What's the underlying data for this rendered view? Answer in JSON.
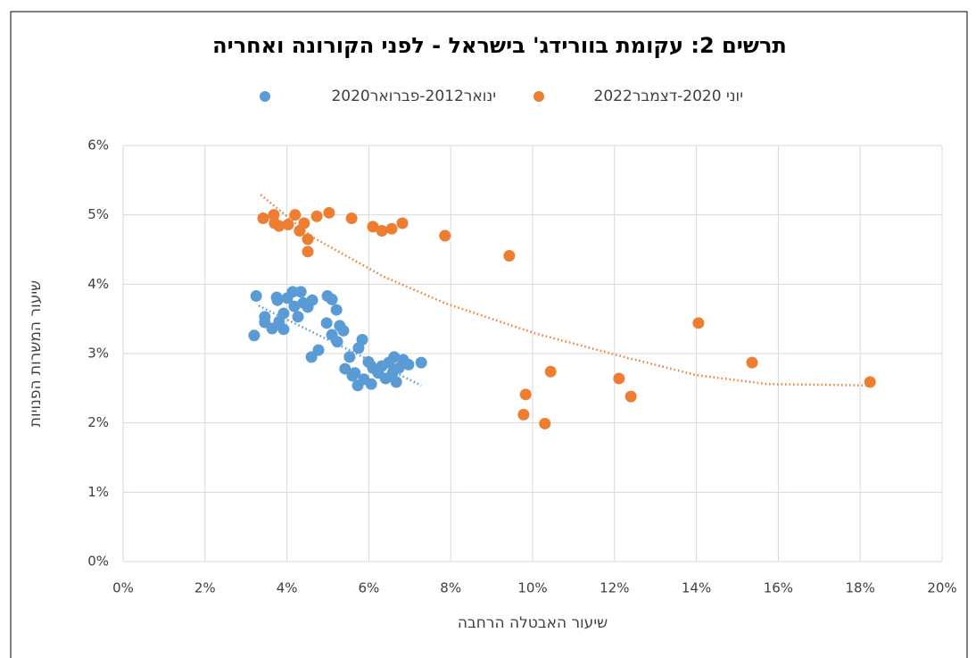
{
  "chart_data": {
    "type": "scatter",
    "title": "תרשים 2: עקומת בוורידג' בישראל - לפני הקורונה ואחריה",
    "x_label": "שיעור האבטלה הרחבה",
    "y_label": "שיעור המשרות הפנויות",
    "xlim": [
      0,
      20
    ],
    "ylim": [
      0,
      6
    ],
    "xticks": [
      {
        "value": 0,
        "label": "0%"
      },
      {
        "value": 2,
        "label": "2%"
      },
      {
        "value": 4,
        "label": "4%"
      },
      {
        "value": 6,
        "label": "6%"
      },
      {
        "value": 8,
        "label": "8%"
      },
      {
        "value": 10,
        "label": "10%"
      },
      {
        "value": 12,
        "label": "12%"
      },
      {
        "value": 14,
        "label": "14%"
      },
      {
        "value": 16,
        "label": "16%"
      },
      {
        "value": 18,
        "label": "18%"
      },
      {
        "value": 20,
        "label": "20%"
      }
    ],
    "yticks": [
      {
        "value": 0,
        "label": "0%"
      },
      {
        "value": 1,
        "label": "1%"
      },
      {
        "value": 2,
        "label": "2%"
      },
      {
        "value": 3,
        "label": "3%"
      },
      {
        "value": 4,
        "label": "4%"
      },
      {
        "value": 5,
        "label": "5%"
      },
      {
        "value": 6,
        "label": "6%"
      }
    ],
    "grid": true,
    "series": [
      {
        "name": "ינואר2012-פברואר2020",
        "color": "#5b9bd5",
        "x": [
          3.25,
          3.2,
          3.46,
          3.46,
          3.64,
          3.75,
          3.81,
          3.92,
          4.01,
          4.14,
          4.18,
          4.27,
          4.34,
          4.4,
          4.51,
          4.62,
          4.6,
          4.77,
          4.99,
          5.1,
          5.21,
          4.97,
          5.1,
          5.23,
          5.29,
          5.38,
          5.42,
          5.53,
          5.66,
          5.75,
          5.84,
          5.73,
          5.88,
          5.99,
          6.1,
          6.23,
          6.32,
          6.41,
          6.49,
          6.58,
          6.62,
          6.73,
          6.84,
          6.97,
          7.28,
          6.67,
          6.06,
          5.6,
          3.77,
          3.92
        ],
        "values": [
          3.83,
          3.26,
          3.53,
          3.45,
          3.36,
          3.81,
          3.46,
          3.58,
          3.8,
          3.89,
          3.68,
          3.53,
          3.89,
          3.73,
          3.67,
          3.77,
          2.95,
          3.05,
          3.83,
          3.78,
          3.63,
          3.44,
          3.27,
          3.17,
          3.4,
          3.33,
          2.78,
          2.95,
          2.72,
          3.08,
          3.2,
          2.54,
          2.63,
          2.88,
          2.79,
          2.72,
          2.82,
          2.64,
          2.87,
          2.72,
          2.95,
          2.79,
          2.91,
          2.84,
          2.87,
          2.59,
          2.56,
          2.68,
          3.77,
          3.35
        ],
        "trendline": {
          "x": [
            3.31,
            7.28
          ],
          "values": [
            3.69,
            2.54
          ]
        }
      },
      {
        "name": "יוני 2020-דצמבר2022",
        "color": "#ed7d31",
        "x": [
          3.42,
          3.68,
          3.7,
          3.81,
          4.03,
          4.2,
          4.31,
          4.42,
          4.51,
          4.51,
          4.73,
          5.03,
          5.58,
          6.1,
          6.32,
          6.56,
          6.82,
          7.86,
          9.43,
          9.83,
          9.78,
          10.3,
          10.44,
          12.11,
          12.4,
          14.05,
          15.36,
          18.24
        ],
        "values": [
          4.95,
          5.0,
          4.88,
          4.84,
          4.86,
          5.0,
          4.77,
          4.88,
          4.65,
          4.47,
          4.98,
          5.03,
          4.95,
          4.83,
          4.77,
          4.8,
          4.88,
          4.7,
          4.41,
          2.41,
          2.12,
          1.99,
          2.74,
          2.64,
          2.38,
          3.44,
          2.87,
          2.59
        ],
        "trendline": {
          "x": [
            3.36,
            4.62,
            6.36,
            7.89,
            10.07,
            12.24,
            13.99,
            15.73,
            18.24
          ],
          "values": [
            5.29,
            4.68,
            4.11,
            3.72,
            3.29,
            2.95,
            2.69,
            2.56,
            2.54
          ]
        }
      }
    ]
  }
}
